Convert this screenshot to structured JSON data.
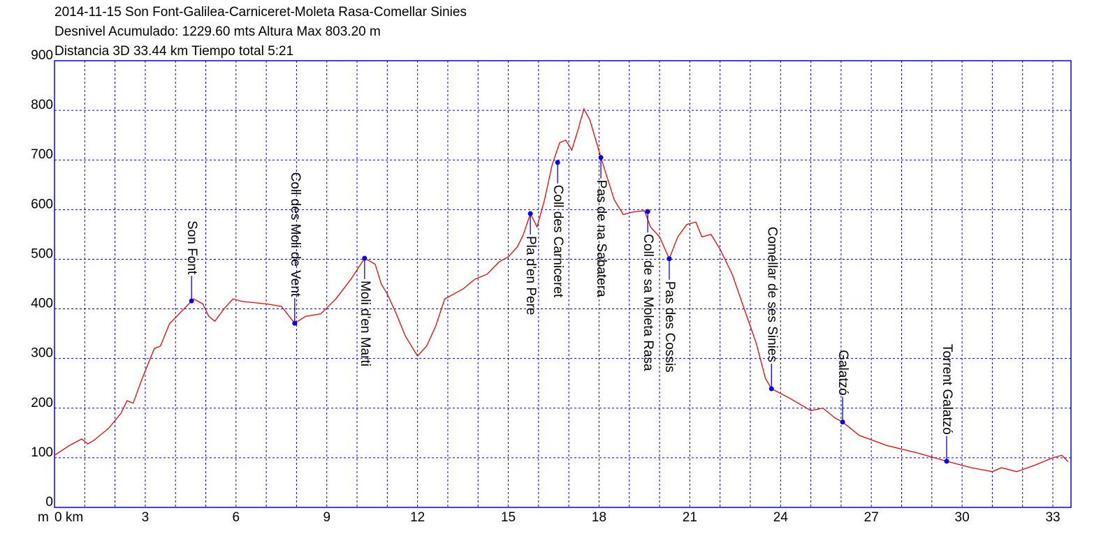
{
  "chart_data": {
    "type": "line",
    "title": "2014-11-15 Son Font-Galilea-Carniceret-Moleta Rasa-Comellar Sinies",
    "subtitle": [
      "Desnivel Acumulado: 1229.60 mts  Altura Max 803.20 m",
      "Distancia 3D 33.44 km  Tiempo total 5:21"
    ],
    "ylabel": "m",
    "xlim": [
      0,
      33.6
    ],
    "ylim": [
      0,
      900
    ],
    "xticks": [
      {
        "value": 0,
        "label": "0 km"
      },
      3,
      6,
      9,
      12,
      15,
      18,
      21,
      24,
      27,
      30,
      33
    ],
    "x_minor_ticks": [
      1,
      2,
      4,
      5,
      7,
      8,
      10,
      11,
      13,
      14,
      16,
      17,
      19,
      20,
      22,
      23,
      25,
      26,
      28,
      29,
      31,
      32
    ],
    "yticks": [
      0,
      100,
      200,
      300,
      400,
      500,
      600,
      700,
      800,
      900
    ],
    "grid": true,
    "grid_color": "#0000ff",
    "frame_color": "#0000ff",
    "series": [
      {
        "color": "#ff0000",
        "x": [
          0,
          0.5,
          0.9,
          1.1,
          1.3,
          1.8,
          2.2,
          2.4,
          2.6,
          2.9,
          3.1,
          3.3,
          3.5,
          3.8,
          4.2,
          4.6,
          4.9,
          5.1,
          5.3,
          5.6,
          5.9,
          6.2,
          7.0,
          7.5,
          7.94,
          8.3,
          8.8,
          9.3,
          9.8,
          10.25,
          10.6,
          10.8,
          11.0,
          11.3,
          11.6,
          12.0,
          12.3,
          12.6,
          12.9,
          13.2,
          13.5,
          13.9,
          14.3,
          14.7,
          15.0,
          15.3,
          15.5,
          15.73,
          15.95,
          16.2,
          16.45,
          16.7,
          16.9,
          17.1,
          17.3,
          17.5,
          17.7,
          18.06,
          18.5,
          18.8,
          19.1,
          19.5,
          19.7,
          20.0,
          20.32,
          20.6,
          20.9,
          21.2,
          21.4,
          21.7,
          22.0,
          22.4,
          22.8,
          23.2,
          23.5,
          23.7,
          24.3,
          25.0,
          25.4,
          25.8,
          26.05,
          26.6,
          27.5,
          28.5,
          29.49,
          30.3,
          31.0,
          31.3,
          31.8,
          32.4,
          33.0,
          33.3,
          33.5
        ],
        "values": [
          105,
          125,
          138,
          128,
          135,
          160,
          190,
          215,
          210,
          260,
          290,
          320,
          325,
          370,
          395,
          420,
          410,
          385,
          375,
          400,
          420,
          415,
          410,
          405,
          371,
          385,
          390,
          420,
          460,
          502,
          490,
          450,
          430,
          390,
          345,
          305,
          325,
          365,
          420,
          430,
          440,
          460,
          470,
          495,
          505,
          525,
          550,
          592,
          565,
          620,
          690,
          735,
          740,
          720,
          760,
          803,
          780,
          705,
          620,
          590,
          595,
          598,
          565,
          545,
          501,
          545,
          570,
          575,
          545,
          550,
          520,
          470,
          400,
          330,
          260,
          239,
          220,
          195,
          200,
          180,
          172,
          145,
          125,
          110,
          93,
          80,
          72,
          80,
          72,
          85,
          100,
          105,
          92
        ]
      }
    ],
    "annotations": [
      {
        "text": "Son Font",
        "x": 4.53,
        "y": 416,
        "position": "above"
      },
      {
        "text": "Coll des Moli de Vent",
        "x": 7.94,
        "y": 371,
        "position": "above"
      },
      {
        "text": "Moli d'en Marti",
        "x": 10.25,
        "y": 502,
        "position": "below"
      },
      {
        "text": "Pla d'en Pere",
        "x": 15.73,
        "y": 592,
        "position": "below"
      },
      {
        "text": "Coll des Carniceret",
        "x": 16.63,
        "y": 695,
        "position": "below"
      },
      {
        "text": "Pas de na Sabatera",
        "x": 18.06,
        "y": 705,
        "position": "below"
      },
      {
        "text": "Coll de sa Moleta Rasa",
        "x": 19.61,
        "y": 596,
        "position": "below"
      },
      {
        "text": "Pas des Cossis",
        "x": 20.32,
        "y": 501,
        "position": "below"
      },
      {
        "text": "Comellar de ses Sinies",
        "x": 23.7,
        "y": 239,
        "position": "above"
      },
      {
        "text": "Galatzó",
        "x": 26.05,
        "y": 172,
        "position": "above"
      },
      {
        "text": "Torrent Galatzó",
        "x": 29.49,
        "y": 93,
        "position": "above"
      }
    ],
    "annotation_color": "#0000ff"
  }
}
